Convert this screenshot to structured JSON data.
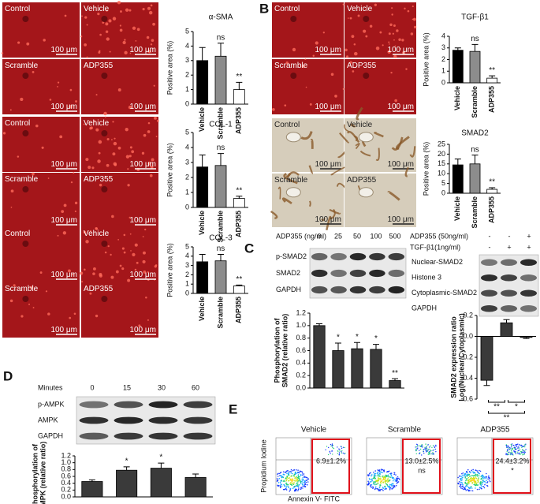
{
  "panel_labels": [
    "A",
    "B",
    "C",
    "D",
    "E"
  ],
  "micrograph_labels": [
    "Control",
    "Vehicle",
    "Scramble",
    "ADP355"
  ],
  "scale_label": "100 μm",
  "chart_data": [
    {
      "type": "bar",
      "title": "α-SMA",
      "ylabel": "Positive area (%)",
      "categories": [
        "Vehicle",
        "Scramble",
        "ADP355"
      ],
      "values": [
        3.0,
        3.3,
        1.0
      ],
      "errors": [
        0.9,
        0.9,
        0.5
      ],
      "colors": [
        "#000000",
        "#8c8c8c",
        "#ffffff"
      ],
      "ylim": [
        0,
        5
      ],
      "yticks": [
        0,
        1,
        2,
        3,
        4,
        5
      ],
      "annotations": [
        {
          "category": "Scramble",
          "text": "ns"
        },
        {
          "category": "ADP355",
          "text": "**"
        }
      ]
    },
    {
      "type": "bar",
      "title": "COL-1",
      "ylabel": "Positive area (%)",
      "categories": [
        "Vehicle",
        "Scramble",
        "ADP355"
      ],
      "values": [
        2.7,
        2.8,
        0.6
      ],
      "errors": [
        0.8,
        0.8,
        0.15
      ],
      "colors": [
        "#000000",
        "#8c8c8c",
        "#ffffff"
      ],
      "ylim": [
        0,
        5
      ],
      "yticks": [
        0,
        1,
        2,
        3,
        4,
        5
      ],
      "annotations": [
        {
          "category": "Scramble",
          "text": "ns"
        },
        {
          "category": "ADP355",
          "text": "**"
        }
      ]
    },
    {
      "type": "bar",
      "title": "COL-3",
      "ylabel": "Positive area (%)",
      "categories": [
        "Vehicle",
        "Scramble",
        "ADP355"
      ],
      "values": [
        3.4,
        3.5,
        0.8
      ],
      "errors": [
        0.8,
        0.7,
        0.1
      ],
      "colors": [
        "#000000",
        "#8c8c8c",
        "#ffffff"
      ],
      "ylim": [
        0,
        5
      ],
      "yticks": [
        0,
        1,
        2,
        3,
        4,
        5
      ],
      "annotations": [
        {
          "category": "Scramble",
          "text": "ns"
        },
        {
          "category": "ADP355",
          "text": "**"
        }
      ]
    },
    {
      "type": "bar",
      "title": "TGF-β1",
      "ylabel": "Positive area (%)",
      "categories": [
        "Vehicle",
        "Scramble",
        "ADP355"
      ],
      "values": [
        2.8,
        2.7,
        0.4
      ],
      "errors": [
        0.2,
        0.6,
        0.2
      ],
      "colors": [
        "#000000",
        "#8c8c8c",
        "#ffffff"
      ],
      "ylim": [
        0,
        4
      ],
      "yticks": [
        0,
        1,
        2,
        3,
        4
      ],
      "annotations": [
        {
          "category": "Scramble",
          "text": "ns"
        },
        {
          "category": "ADP355",
          "text": "**"
        }
      ]
    },
    {
      "type": "bar",
      "title": "SMAD2",
      "ylabel": "Positive area (%)",
      "categories": [
        "Vehicle",
        "Scramble",
        "ADP355"
      ],
      "values": [
        14.5,
        15,
        2
      ],
      "errors": [
        3,
        4.5,
        0.8
      ],
      "colors": [
        "#000000",
        "#8c8c8c",
        "#ffffff"
      ],
      "ylim": [
        0,
        25
      ],
      "yticks": [
        0,
        5,
        10,
        15,
        20,
        25
      ],
      "annotations": [
        {
          "category": "Scramble",
          "text": "ns"
        },
        {
          "category": "ADP355",
          "text": "**"
        }
      ]
    },
    {
      "type": "bar",
      "ylabel": [
        "Phosphorylation of",
        "SMAD2 (relative ratio)"
      ],
      "categories": [
        "0",
        "25",
        "50",
        "100",
        "500"
      ],
      "values": [
        1.0,
        0.6,
        0.63,
        0.62,
        0.12
      ],
      "errors": [
        0.03,
        0.12,
        0.1,
        0.08,
        0.03
      ],
      "colors": [
        "#3a3a3a",
        "#3a3a3a",
        "#3a3a3a",
        "#3a3a3a",
        "#3a3a3a"
      ],
      "ylim": [
        0,
        1.2
      ],
      "yticks": [
        {
          "value": 0,
          "label": "0.0"
        },
        0.2,
        0.4,
        0.6,
        0.8,
        {
          "value": 1,
          "label": "1.0"
        },
        1.2
      ],
      "annotations": [
        {
          "category": "25",
          "text": "*"
        },
        {
          "category": "50",
          "text": "*"
        },
        {
          "category": "100",
          "text": "*"
        },
        {
          "category": "500",
          "text": "**"
        }
      ]
    },
    {
      "type": "bar",
      "ylabel": [
        "SMAD2 expression ratio",
        "Log(Nuclear/Cytoplasmic)"
      ],
      "categories": [
        null,
        null,
        null
      ],
      "values": [
        -0.42,
        0.13,
        -0.01
      ],
      "errors": [
        0.05,
        0.03,
        0.01
      ],
      "colors": [
        "#3a3a3a",
        "#3a3a3a",
        "#3a3a3a"
      ],
      "ylim": [
        -0.6,
        0.2
      ],
      "yticks": [
        -0.6,
        -0.4,
        -0.2,
        {
          "value": 0,
          "label": "0.0"
        },
        0.2
      ],
      "brackets": [
        {
          "from": 0,
          "to": 1,
          "text": "**"
        },
        {
          "from": 1,
          "to": 2,
          "text": "*"
        },
        {
          "from": 0,
          "to": 2,
          "text": "**"
        }
      ]
    },
    {
      "type": "bar",
      "ylabel": [
        "Phosphorylation of",
        "AMPK (relative ratio)"
      ],
      "categories": [
        "0",
        "15",
        "30",
        "60"
      ],
      "values": [
        0.45,
        0.78,
        0.84,
        0.57
      ],
      "errors": [
        0.05,
        0.1,
        0.15,
        0.1
      ],
      "colors": [
        "#3a3a3a",
        "#3a3a3a",
        "#3a3a3a",
        "#3a3a3a"
      ],
      "ylim": [
        0,
        1.2
      ],
      "yticks": [
        {
          "value": 0,
          "label": "0.0"
        },
        0.2,
        0.4,
        0.6,
        0.8,
        {
          "value": 1,
          "label": "1.0"
        },
        1.2
      ],
      "annotations": [
        {
          "category": "15",
          "text": "*"
        },
        {
          "category": "30",
          "text": "*"
        }
      ]
    }
  ],
  "blots": [
    {
      "header": "ADP355 (ng/ml)",
      "rows": [
        "p-SMAD2",
        "SMAD2",
        "GAPDH"
      ]
    },
    {
      "rows": [
        "Nuclear-SMAD2",
        "Histone 3",
        "Cytoplasmic-SMAD2",
        "GAPDH"
      ]
    },
    {
      "header": "Minutes",
      "rows": [
        "p-AMPK",
        "AMPK",
        "GAPDH"
      ]
    }
  ],
  "conditions": [
    {
      "label": "ADP355 (50ng/ml)",
      "signs": [
        "-",
        "-",
        "+"
      ]
    },
    {
      "label": "TGF-β1(1ng/ml)",
      "signs": [
        "-",
        "+",
        "+"
      ]
    }
  ],
  "flow": {
    "ylabel": "Propidium Iodine",
    "xlabel": "Annexin V- FITC",
    "plots": [
      {
        "title": "Vehicle",
        "value": "6.9±1.2%"
      },
      {
        "title": "Scramble",
        "value": "13.0±2.5%",
        "note": "ns"
      },
      {
        "title": "ADP355",
        "value": "24.4±3.2%",
        "note": "*"
      }
    ]
  }
}
